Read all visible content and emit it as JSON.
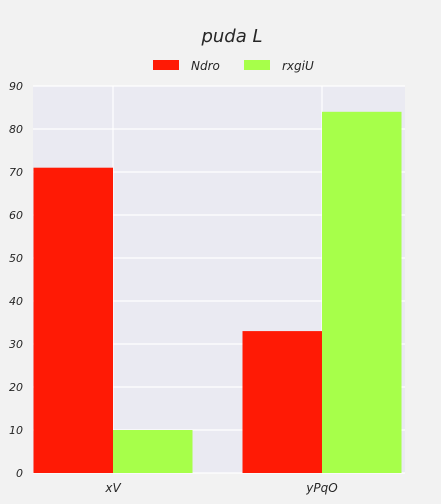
{
  "chart_data": {
    "type": "bar",
    "title": "puda L",
    "xlabel": "",
    "ylabel": "",
    "categories": [
      "xV",
      "yPqO"
    ],
    "series": [
      {
        "name": "Ndro",
        "values": [
          71,
          33
        ],
        "color": "#ff1a05"
      },
      {
        "name": "rxgiU",
        "values": [
          10,
          84
        ],
        "color": "#a7ff4a"
      }
    ],
    "ylim": [
      0,
      90
    ],
    "yticks": [
      0,
      10,
      20,
      30,
      40,
      50,
      60,
      70,
      80,
      90
    ],
    "grid": true,
    "legend_position": "top-center",
    "plot_background": "#eaeaf2"
  }
}
